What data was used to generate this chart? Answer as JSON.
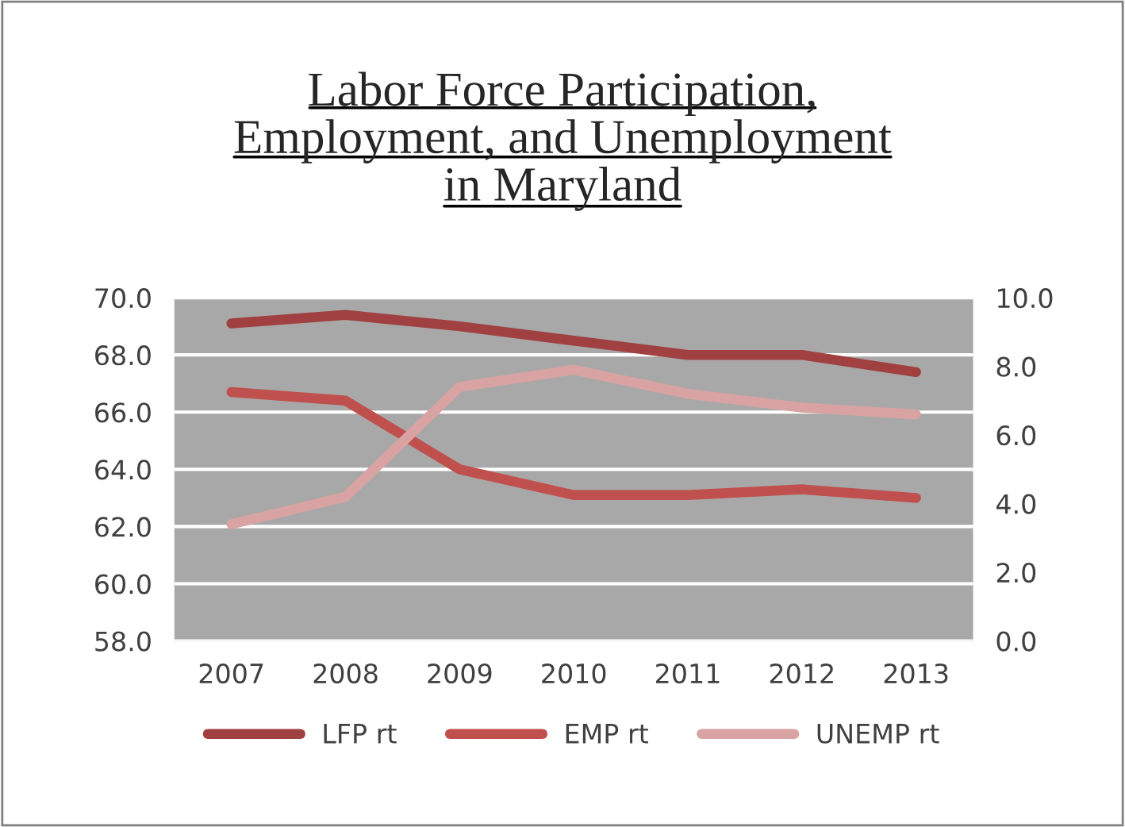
{
  "chart_data": {
    "type": "line",
    "title": "Labor Force Participation,\nEmployment, and Unemployment\nin Maryland",
    "categories": [
      "2007",
      "2008",
      "2009",
      "2010",
      "2011",
      "2012",
      "2013"
    ],
    "series": [
      {
        "name": "LFP rt",
        "color": "#a04040",
        "values": [
          69.1,
          69.4,
          69.0,
          68.5,
          68.0,
          68.0,
          67.4
        ]
      },
      {
        "name": "EMP rt",
        "color": "#c0504d",
        "values": [
          66.7,
          66.4,
          64.0,
          63.1,
          63.1,
          63.3,
          63.0
        ]
      },
      {
        "name": "UNEMP rt",
        "color": "#d9a3a3",
        "axis": "y2",
        "values": [
          3.4,
          4.2,
          7.4,
          7.9,
          7.2,
          6.8,
          6.6
        ]
      }
    ],
    "ylim": [
      58,
      70
    ],
    "yticks": [
      {
        "value": 58,
        "label": "58.0"
      },
      {
        "value": 60,
        "label": "60.0"
      },
      {
        "value": 62,
        "label": "62.0"
      },
      {
        "value": 64,
        "label": "64.0"
      },
      {
        "value": 66,
        "label": "66.0"
      },
      {
        "value": 68,
        "label": "68.0"
      },
      {
        "value": 70,
        "label": "70.0"
      }
    ],
    "y2lim": [
      0,
      10
    ],
    "y2ticks": [
      {
        "value": 0,
        "label": "0.0"
      },
      {
        "value": 2,
        "label": "2.0"
      },
      {
        "value": 4,
        "label": "4.0"
      },
      {
        "value": 6,
        "label": "6.0"
      },
      {
        "value": 8,
        "label": "8.0"
      },
      {
        "value": 10,
        "label": "10.0"
      }
    ],
    "grid": "y",
    "legend": "bottom",
    "marker": "none",
    "line_style": "solid"
  }
}
